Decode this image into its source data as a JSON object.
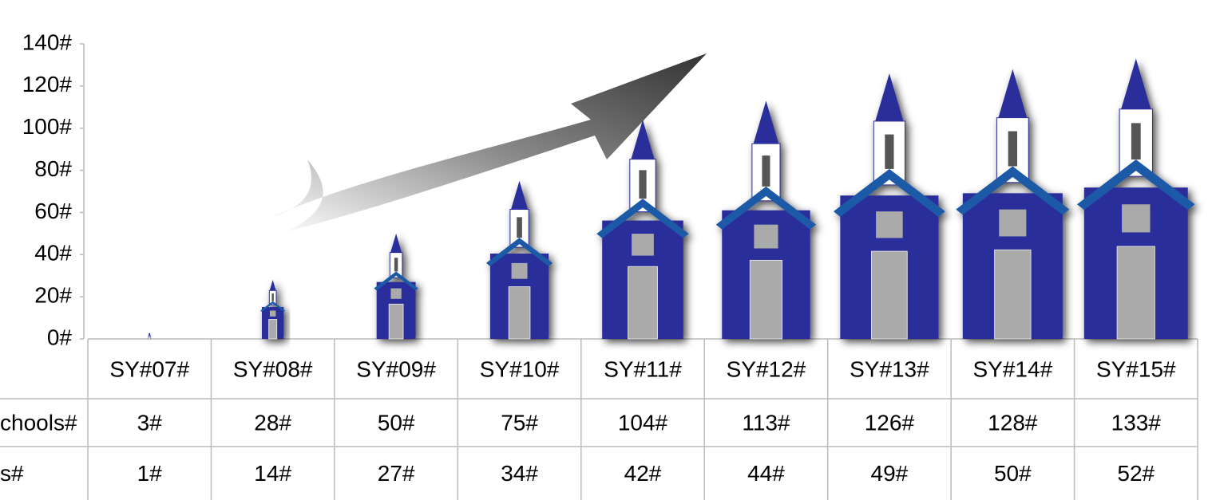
{
  "chart_data": {
    "type": "pictograph",
    "categories": [
      "SY#07#",
      "SY#08#",
      "SY#09#",
      "SY#10#",
      "SY#11#",
      "SY#12#",
      "SY#13#",
      "SY#14#",
      "SY#15#"
    ],
    "series": [
      {
        "name": "chools#",
        "color": "#2b2f9b",
        "values": [
          3,
          28,
          50,
          75,
          104,
          113,
          126,
          128,
          133
        ],
        "value_labels": [
          "3#",
          "28#",
          "50#",
          "75#",
          "104#",
          "113#",
          "126#",
          "128#",
          "133#"
        ]
      },
      {
        "name": "s#",
        "values": [
          1,
          14,
          27,
          34,
          42,
          44,
          49,
          50,
          52
        ],
        "value_labels": [
          "1#",
          "14#",
          "27#",
          "34#",
          "42#",
          "44#",
          "49#",
          "50#",
          "52#"
        ]
      }
    ],
    "ylim": [
      0,
      140
    ],
    "yticks": [
      {
        "value": 0,
        "label": "0#"
      },
      {
        "value": 20,
        "label": "20#"
      },
      {
        "value": 40,
        "label": "40#"
      },
      {
        "value": 60,
        "label": "60#"
      },
      {
        "value": 80,
        "label": "80#"
      },
      {
        "value": 100,
        "label": "100#"
      },
      {
        "value": 120,
        "label": "120#"
      },
      {
        "value": 140,
        "label": "140#"
      }
    ]
  }
}
